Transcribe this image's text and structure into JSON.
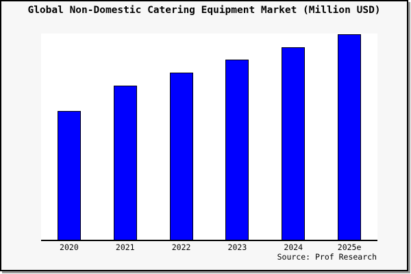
{
  "header": {
    "title": "Global Non-Domestic Catering Equipment Market (Million USD)"
  },
  "footer": {
    "source": "Source: Prof Research"
  },
  "colors": {
    "bar_fill": "#0000ff",
    "bar_edge": "#000010",
    "figure_bg": "#f7f7f7",
    "plot_bg": "#ffffff",
    "frame": "#000000",
    "shadow": "#9a9a9a",
    "text": "#000000"
  },
  "chart_data": {
    "type": "bar",
    "title": "Global Non-Domestic Catering Equipment Market (Million USD)",
    "units": "Million USD",
    "categories": [
      "2020",
      "2021",
      "2022",
      "2023",
      "2024",
      "2025e"
    ],
    "values_relative_pct_of_2025e": [
      62.7,
      75.0,
      81.3,
      87.7,
      93.7,
      100.0
    ],
    "xlabel": "",
    "ylabel": "",
    "y_axis_visible": false,
    "y_tick_labels_visible": false,
    "grid": false,
    "legend": null,
    "annotation": "Source: Prof Research"
  }
}
